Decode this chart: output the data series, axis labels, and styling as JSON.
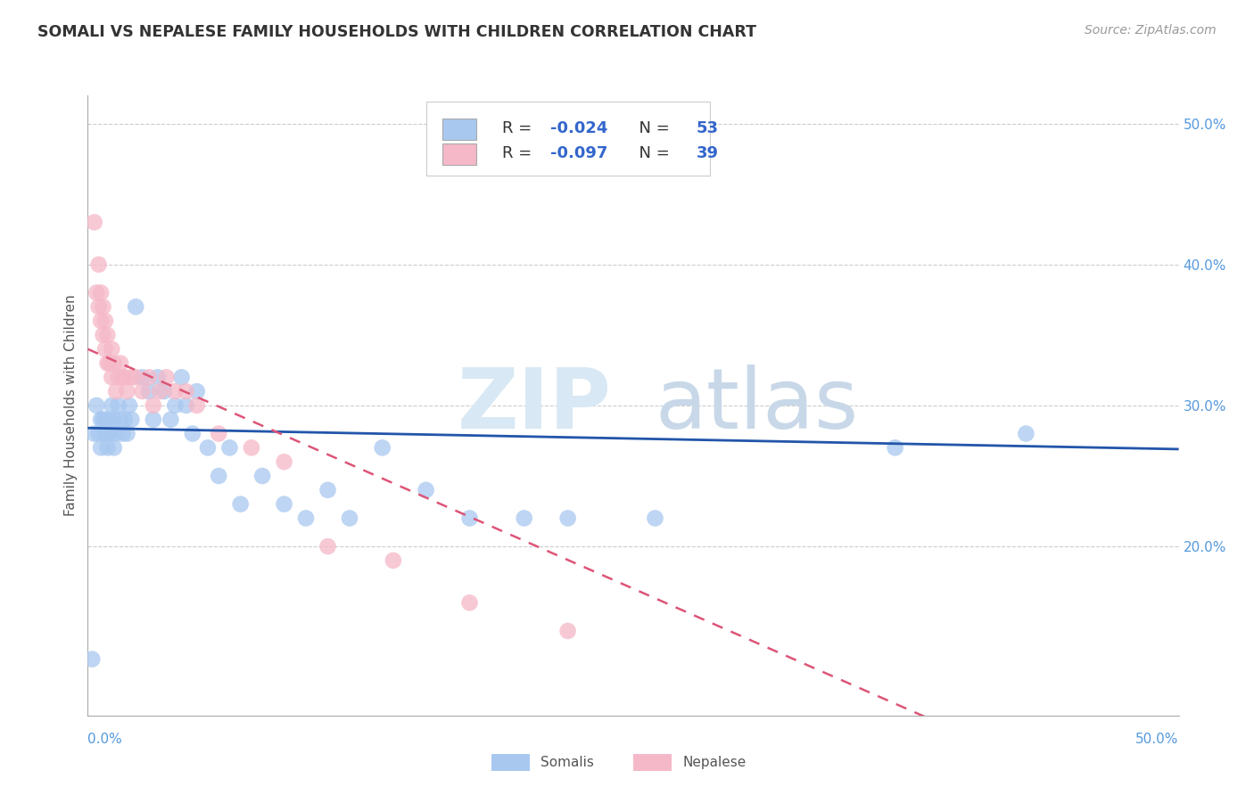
{
  "title": "SOMALI VS NEPALESE FAMILY HOUSEHOLDS WITH CHILDREN CORRELATION CHART",
  "source": "Source: ZipAtlas.com",
  "ylabel": "Family Households with Children",
  "xmin": 0.0,
  "xmax": 0.5,
  "ymin": 0.08,
  "ymax": 0.52,
  "ytick_vals": [
    0.2,
    0.3,
    0.4,
    0.5
  ],
  "ytick_labels": [
    "20.0%",
    "30.0%",
    "40.0%",
    "50.0%"
  ],
  "grid_color": "#cccccc",
  "background_color": "#ffffff",
  "somali_color": "#a8c8f0",
  "nepalese_color": "#f5b8c8",
  "somali_line_color": "#2255aa",
  "nepalese_line_color": "#dd5577",
  "somali_R": -0.024,
  "somali_N": 53,
  "nepalese_R": -0.097,
  "nepalese_N": 39,
  "somali_x": [
    0.002,
    0.003,
    0.004,
    0.005,
    0.006,
    0.006,
    0.007,
    0.008,
    0.008,
    0.009,
    0.009,
    0.01,
    0.01,
    0.011,
    0.012,
    0.012,
    0.013,
    0.014,
    0.015,
    0.016,
    0.017,
    0.018,
    0.019,
    0.02,
    0.022,
    0.025,
    0.028,
    0.03,
    0.032,
    0.035,
    0.038,
    0.04,
    0.043,
    0.045,
    0.048,
    0.05,
    0.055,
    0.06,
    0.065,
    0.07,
    0.08,
    0.09,
    0.1,
    0.11,
    0.12,
    0.135,
    0.155,
    0.175,
    0.2,
    0.22,
    0.26,
    0.37,
    0.43
  ],
  "somali_y": [
    0.12,
    0.28,
    0.3,
    0.28,
    0.29,
    0.27,
    0.29,
    0.28,
    0.29,
    0.28,
    0.27,
    0.29,
    0.28,
    0.3,
    0.27,
    0.29,
    0.28,
    0.3,
    0.29,
    0.28,
    0.29,
    0.28,
    0.3,
    0.29,
    0.37,
    0.32,
    0.31,
    0.29,
    0.32,
    0.31,
    0.29,
    0.3,
    0.32,
    0.3,
    0.28,
    0.31,
    0.27,
    0.25,
    0.27,
    0.23,
    0.25,
    0.23,
    0.22,
    0.24,
    0.22,
    0.27,
    0.24,
    0.22,
    0.22,
    0.22,
    0.22,
    0.27,
    0.28
  ],
  "nepalese_x": [
    0.003,
    0.004,
    0.005,
    0.005,
    0.006,
    0.006,
    0.007,
    0.007,
    0.008,
    0.008,
    0.009,
    0.009,
    0.01,
    0.011,
    0.011,
    0.012,
    0.013,
    0.014,
    0.015,
    0.016,
    0.017,
    0.018,
    0.02,
    0.022,
    0.025,
    0.028,
    0.03,
    0.033,
    0.036,
    0.04,
    0.045,
    0.05,
    0.06,
    0.075,
    0.09,
    0.11,
    0.14,
    0.175,
    0.22
  ],
  "nepalese_y": [
    0.43,
    0.38,
    0.4,
    0.37,
    0.38,
    0.36,
    0.35,
    0.37,
    0.34,
    0.36,
    0.33,
    0.35,
    0.33,
    0.34,
    0.32,
    0.33,
    0.31,
    0.32,
    0.33,
    0.32,
    0.32,
    0.31,
    0.32,
    0.32,
    0.31,
    0.32,
    0.3,
    0.31,
    0.32,
    0.31,
    0.31,
    0.3,
    0.28,
    0.27,
    0.26,
    0.2,
    0.19,
    0.16,
    0.14
  ],
  "somali_intercept": 0.284,
  "somali_slope": -0.03,
  "nepalese_intercept": 0.34,
  "nepalese_slope": -0.68
}
